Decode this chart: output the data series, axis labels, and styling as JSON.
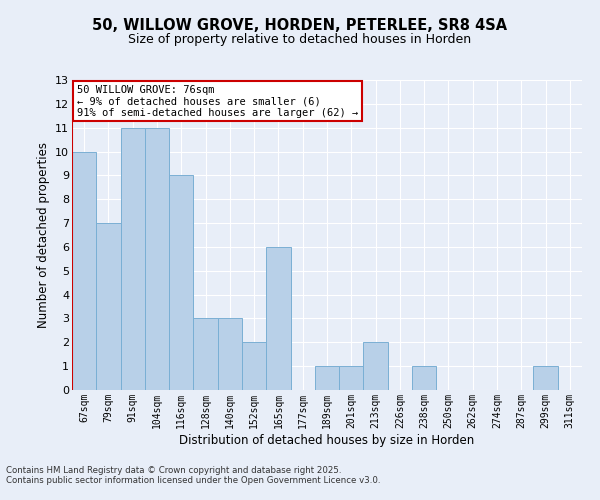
{
  "title_line1": "50, WILLOW GROVE, HORDEN, PETERLEE, SR8 4SA",
  "title_line2": "Size of property relative to detached houses in Horden",
  "xlabel": "Distribution of detached houses by size in Horden",
  "ylabel": "Number of detached properties",
  "categories": [
    "67sqm",
    "79sqm",
    "91sqm",
    "104sqm",
    "116sqm",
    "128sqm",
    "140sqm",
    "152sqm",
    "165sqm",
    "177sqm",
    "189sqm",
    "201sqm",
    "213sqm",
    "226sqm",
    "238sqm",
    "250sqm",
    "262sqm",
    "274sqm",
    "287sqm",
    "299sqm",
    "311sqm"
  ],
  "values": [
    10,
    7,
    11,
    11,
    9,
    3,
    3,
    2,
    6,
    0,
    1,
    1,
    2,
    0,
    1,
    0,
    0,
    0,
    0,
    1,
    0
  ],
  "bar_color": "#b8d0e8",
  "bar_edge_color": "#7aafd4",
  "highlight_line_color": "#cc0000",
  "ylim": [
    0,
    13
  ],
  "yticks": [
    0,
    1,
    2,
    3,
    4,
    5,
    6,
    7,
    8,
    9,
    10,
    11,
    12,
    13
  ],
  "annotation_text": "50 WILLOW GROVE: 76sqm\n← 9% of detached houses are smaller (6)\n91% of semi-detached houses are larger (62) →",
  "annotation_box_color": "#ffffff",
  "annotation_box_edge_color": "#cc0000",
  "footnote_line1": "Contains HM Land Registry data © Crown copyright and database right 2025.",
  "footnote_line2": "Contains public sector information licensed under the Open Government Licence v3.0.",
  "background_color": "#e8eef8",
  "grid_color": "#ffffff",
  "figsize": [
    6.0,
    5.0
  ],
  "dpi": 100
}
